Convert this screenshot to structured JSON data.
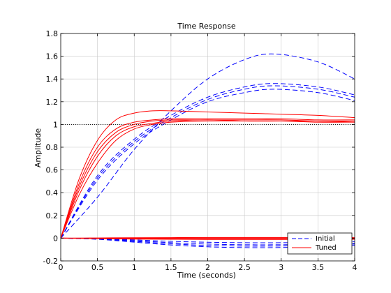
{
  "chart_data": {
    "type": "line",
    "title": "Time Response",
    "xlabel": "Time (seconds)",
    "ylabel": "Amplitude",
    "xlim": [
      0,
      4
    ],
    "ylim": [
      -0.2,
      1.8
    ],
    "xticks": [
      0,
      0.5,
      1,
      1.5,
      2,
      2.5,
      3,
      3.5,
      4
    ],
    "xtick_labels": [
      "0",
      "0.5",
      "1",
      "1.5",
      "2",
      "2.5",
      "3",
      "3.5",
      "4"
    ],
    "yticks": [
      -0.2,
      0,
      0.2,
      0.4,
      0.6,
      0.8,
      1,
      1.2,
      1.4,
      1.6,
      1.8
    ],
    "ytick_labels": [
      "-0.2",
      "0",
      "0.2",
      "0.4",
      "0.6",
      "0.8",
      "1",
      "1.2",
      "1.4",
      "1.6",
      "1.8"
    ],
    "grid": true,
    "legend_position": "bottom-right",
    "reference_line": {
      "y": 1,
      "style": "dotted",
      "color": "#000000"
    },
    "legend": [
      {
        "label": "Initial",
        "color": "#0000ff",
        "style": "dashed"
      },
      {
        "label": "Tuned",
        "color": "#ff0000",
        "style": "solid"
      }
    ],
    "series": [
      {
        "group": "Initial",
        "color": "#0000ff",
        "style": "dashed",
        "x": [
          0,
          0.5,
          1,
          1.5,
          2,
          2.5,
          2.9,
          3.5,
          4
        ],
        "y": [
          0,
          0.36,
          0.78,
          1.12,
          1.4,
          1.57,
          1.62,
          1.55,
          1.4
        ]
      },
      {
        "group": "Initial",
        "color": "#0000ff",
        "style": "dashed",
        "x": [
          0,
          0.5,
          1,
          1.5,
          2,
          2.5,
          2.9,
          3.5,
          4
        ],
        "y": [
          0,
          0.55,
          0.87,
          1.08,
          1.24,
          1.33,
          1.36,
          1.33,
          1.26
        ]
      },
      {
        "group": "Initial",
        "color": "#0000ff",
        "style": "dashed",
        "x": [
          0,
          0.5,
          1,
          1.5,
          2,
          2.5,
          2.9,
          3.5,
          4
        ],
        "y": [
          0,
          0.53,
          0.85,
          1.06,
          1.22,
          1.31,
          1.34,
          1.31,
          1.24
        ]
      },
      {
        "group": "Initial",
        "color": "#0000ff",
        "style": "dashed",
        "x": [
          0,
          0.5,
          1,
          1.5,
          2,
          2.5,
          2.9,
          3.5,
          4
        ],
        "y": [
          0,
          0.51,
          0.83,
          1.04,
          1.2,
          1.28,
          1.31,
          1.28,
          1.21
        ]
      },
      {
        "group": "Initial",
        "color": "#0000ff",
        "style": "dashed",
        "x": [
          0,
          0.5,
          1,
          1.5,
          2,
          2.5,
          3,
          3.5,
          4
        ],
        "y": [
          0,
          -0.004,
          -0.015,
          -0.028,
          -0.036,
          -0.04,
          -0.04,
          -0.037,
          -0.03
        ]
      },
      {
        "group": "Initial",
        "color": "#0000ff",
        "style": "dashed",
        "x": [
          0,
          0.5,
          1,
          1.5,
          2,
          2.5,
          3,
          3.5,
          4
        ],
        "y": [
          0,
          -0.006,
          -0.022,
          -0.04,
          -0.052,
          -0.058,
          -0.058,
          -0.054,
          -0.044
        ]
      },
      {
        "group": "Initial",
        "color": "#0000ff",
        "style": "dashed",
        "x": [
          0,
          0.5,
          1,
          1.5,
          2,
          2.5,
          3,
          3.5,
          4
        ],
        "y": [
          0,
          -0.008,
          -0.028,
          -0.05,
          -0.064,
          -0.07,
          -0.069,
          -0.064,
          -0.052
        ]
      },
      {
        "group": "Initial",
        "color": "#0000ff",
        "style": "dashed",
        "x": [
          0,
          0.5,
          1,
          1.5,
          2,
          2.5,
          3,
          3.5,
          4
        ],
        "y": [
          0,
          -0.01,
          -0.035,
          -0.06,
          -0.076,
          -0.083,
          -0.082,
          -0.075,
          -0.062
        ]
      },
      {
        "group": "Tuned",
        "color": "#ff0000",
        "style": "solid",
        "x": [
          0,
          0.25,
          0.5,
          0.75,
          1,
          1.25,
          1.5,
          2,
          2.5,
          3,
          3.5,
          4
        ],
        "y": [
          0,
          0.52,
          0.86,
          1.04,
          1.1,
          1.12,
          1.12,
          1.11,
          1.1,
          1.09,
          1.08,
          1.06
        ]
      },
      {
        "group": "Tuned",
        "color": "#ff0000",
        "style": "solid",
        "x": [
          0,
          0.25,
          0.5,
          0.75,
          1,
          1.25,
          1.5,
          2,
          2.5,
          3,
          3.5,
          4
        ],
        "y": [
          0,
          0.48,
          0.8,
          0.96,
          1.02,
          1.04,
          1.05,
          1.05,
          1.05,
          1.05,
          1.04,
          1.04
        ]
      },
      {
        "group": "Tuned",
        "color": "#ff0000",
        "style": "solid",
        "x": [
          0,
          0.25,
          0.5,
          0.75,
          1,
          1.25,
          1.5,
          2,
          2.5,
          3,
          3.5,
          4
        ],
        "y": [
          0,
          0.45,
          0.76,
          0.93,
          1.0,
          1.03,
          1.04,
          1.04,
          1.04,
          1.04,
          1.03,
          1.03
        ]
      },
      {
        "group": "Tuned",
        "color": "#ff0000",
        "style": "solid",
        "x": [
          0,
          0.25,
          0.5,
          0.75,
          1,
          1.25,
          1.5,
          2,
          2.5,
          3,
          3.5,
          4
        ],
        "y": [
          0,
          0.42,
          0.72,
          0.9,
          0.98,
          1.01,
          1.03,
          1.04,
          1.03,
          1.03,
          1.03,
          1.02
        ]
      },
      {
        "group": "Tuned",
        "color": "#ff0000",
        "style": "solid",
        "x": [
          0,
          0.25,
          0.5,
          0.75,
          1,
          1.25,
          1.5,
          2,
          2.5,
          3,
          3.5,
          4
        ],
        "y": [
          0,
          0.38,
          0.66,
          0.86,
          0.96,
          1.0,
          1.02,
          1.03,
          1.03,
          1.03,
          1.02,
          1.02
        ]
      },
      {
        "group": "Tuned",
        "color": "#ff0000",
        "style": "solid",
        "x": [
          0,
          0.5,
          1,
          1.5,
          2,
          2.5,
          3,
          3.5,
          4
        ],
        "y": [
          0,
          -0.004,
          -0.008,
          -0.01,
          -0.011,
          -0.011,
          -0.011,
          -0.01,
          -0.01
        ]
      },
      {
        "group": "Tuned",
        "color": "#ff0000",
        "style": "solid",
        "x": [
          0,
          0.5,
          1,
          1.5,
          2,
          2.5,
          3,
          3.5,
          4
        ],
        "y": [
          0,
          -0.002,
          -0.004,
          -0.005,
          -0.006,
          -0.006,
          -0.006,
          -0.006,
          -0.005
        ]
      },
      {
        "group": "Tuned",
        "color": "#ff0000",
        "style": "solid",
        "x": [
          0,
          0.5,
          1,
          1.5,
          2,
          2.5,
          3,
          3.5,
          4
        ],
        "y": [
          0,
          0.0,
          0.0,
          0.001,
          0.001,
          0.001,
          0.001,
          0.001,
          0.001
        ]
      },
      {
        "group": "Tuned",
        "color": "#ff0000",
        "style": "solid",
        "x": [
          0,
          0.5,
          1,
          1.5,
          2,
          2.5,
          3,
          3.5,
          4
        ],
        "y": [
          0,
          0.002,
          0.004,
          0.005,
          0.006,
          0.006,
          0.006,
          0.006,
          0.005
        ]
      }
    ]
  }
}
